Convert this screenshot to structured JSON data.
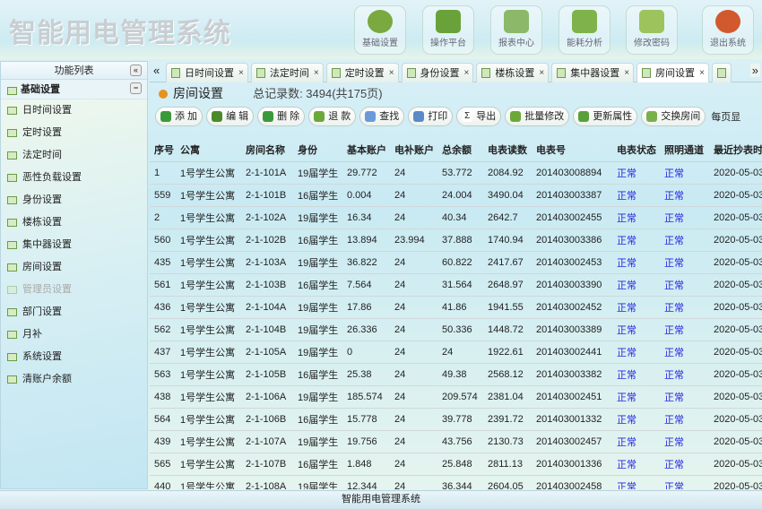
{
  "app_title": "智能用电管理系统",
  "top_buttons": [
    {
      "label": "基础设置",
      "icon": "gear-icon",
      "color": "#79a93f"
    },
    {
      "label": "操作平台",
      "icon": "monitor-icon",
      "color": "#6aa23a"
    },
    {
      "label": "报表中心",
      "icon": "printer-icon",
      "color": "#8cb86a"
    },
    {
      "label": "能耗分析",
      "icon": "bar-chart-icon",
      "color": "#7fb24b"
    },
    {
      "label": "修改密码",
      "icon": "lock-icon",
      "color": "#9dc35c"
    },
    {
      "label": "退出系统",
      "icon": "close-icon",
      "color": "#d2592e"
    }
  ],
  "sidebar": {
    "title": "功能列表",
    "collapse": "«",
    "group": "基础设置",
    "group_toggle": "−",
    "items": [
      {
        "label": "日时间设置"
      },
      {
        "label": "定时设置"
      },
      {
        "label": "法定时间"
      },
      {
        "label": "恶性负载设置"
      },
      {
        "label": "身份设置"
      },
      {
        "label": "楼栋设置"
      },
      {
        "label": "集中器设置"
      },
      {
        "label": "房间设置"
      },
      {
        "label": "管理员设置",
        "disabled": true
      },
      {
        "label": "部门设置"
      },
      {
        "label": "月补"
      },
      {
        "label": "系统设置"
      },
      {
        "label": "清账户余额"
      }
    ]
  },
  "tabs": {
    "prev": "«",
    "next": "»",
    "close": "×",
    "items": [
      {
        "label": "日时间设置"
      },
      {
        "label": "法定时间"
      },
      {
        "label": "定时设置"
      },
      {
        "label": "身份设置"
      },
      {
        "label": "楼栋设置"
      },
      {
        "label": "集中器设置"
      },
      {
        "label": "房间设置",
        "active": true
      }
    ]
  },
  "page": {
    "title": "房间设置",
    "record_count": "总记录数: 3494(共175页)"
  },
  "toolbar": {
    "buttons": [
      {
        "label": "添 加",
        "icon": "plus-icon",
        "color": "#3a9a3a"
      },
      {
        "label": "编 辑",
        "icon": "pencil-icon",
        "color": "#4a8a2a"
      },
      {
        "label": "删 除",
        "icon": "minus-icon",
        "color": "#3a9a3a"
      },
      {
        "label": "退 款",
        "icon": "x-icon",
        "color": "#6aa83a"
      },
      {
        "label": "查找",
        "icon": "magnifier-icon",
        "color": "#6a9ad8"
      },
      {
        "label": "打印",
        "icon": "printer-icon",
        "color": "#5a8ac8"
      },
      {
        "label": "导出",
        "icon": "sigma-icon",
        "color": "#ffffff"
      },
      {
        "label": "批量修改",
        "icon": "gear-icon",
        "color": "#6aa83a"
      },
      {
        "label": "更新属性",
        "icon": "arrow-down-icon",
        "color": "#5aa03a"
      },
      {
        "label": "交换房间",
        "icon": "house-icon",
        "color": "#7ab04a"
      }
    ],
    "page_size_label": "每页显"
  },
  "table": {
    "columns": [
      "序号",
      "公寓",
      "房间名称",
      "身份",
      "基本账户",
      "电补账户",
      "总余额",
      "电表读数",
      "电表号",
      "电表状态",
      "照明通道",
      "最近抄表时间"
    ],
    "rows": [
      [
        "1",
        "1号学生公寓",
        "2-1-101A",
        "19届学生",
        "29.772",
        "24",
        "53.772",
        "2084.92",
        "201403008894",
        "正常",
        "正常",
        "2020-05-03"
      ],
      [
        "559",
        "1号学生公寓",
        "2-1-101B",
        "16届学生",
        "0.004",
        "24",
        "24.004",
        "3490.04",
        "201403003387",
        "正常",
        "正常",
        "2020-05-03"
      ],
      [
        "2",
        "1号学生公寓",
        "2-1-102A",
        "19届学生",
        "16.34",
        "24",
        "40.34",
        "2642.7",
        "201403002455",
        "正常",
        "正常",
        "2020-05-03"
      ],
      [
        "560",
        "1号学生公寓",
        "2-1-102B",
        "16届学生",
        "13.894",
        "23.994",
        "37.888",
        "1740.94",
        "201403003386",
        "正常",
        "正常",
        "2020-05-03"
      ],
      [
        "435",
        "1号学生公寓",
        "2-1-103A",
        "19届学生",
        "36.822",
        "24",
        "60.822",
        "2417.67",
        "201403002453",
        "正常",
        "正常",
        "2020-05-03"
      ],
      [
        "561",
        "1号学生公寓",
        "2-1-103B",
        "16届学生",
        "7.564",
        "24",
        "31.564",
        "2648.97",
        "201403003390",
        "正常",
        "正常",
        "2020-05-03"
      ],
      [
        "436",
        "1号学生公寓",
        "2-1-104A",
        "19届学生",
        "17.86",
        "24",
        "41.86",
        "1941.55",
        "201403002452",
        "正常",
        "正常",
        "2020-05-03"
      ],
      [
        "562",
        "1号学生公寓",
        "2-1-104B",
        "19届学生",
        "26.336",
        "24",
        "50.336",
        "1448.72",
        "201403003389",
        "正常",
        "正常",
        "2020-05-03"
      ],
      [
        "437",
        "1号学生公寓",
        "2-1-105A",
        "19届学生",
        "0",
        "24",
        "24",
        "1922.61",
        "201403002441",
        "正常",
        "正常",
        "2020-05-03"
      ],
      [
        "563",
        "1号学生公寓",
        "2-1-105B",
        "16届学生",
        "25.38",
        "24",
        "49.38",
        "2568.12",
        "201403003382",
        "正常",
        "正常",
        "2020-05-03"
      ],
      [
        "438",
        "1号学生公寓",
        "2-1-106A",
        "19届学生",
        "185.574",
        "24",
        "209.574",
        "2381.04",
        "201403002451",
        "正常",
        "正常",
        "2020-05-03"
      ],
      [
        "564",
        "1号学生公寓",
        "2-1-106B",
        "16届学生",
        "15.778",
        "24",
        "39.778",
        "2391.72",
        "201403001332",
        "正常",
        "正常",
        "2020-05-03"
      ],
      [
        "439",
        "1号学生公寓",
        "2-1-107A",
        "19届学生",
        "19.756",
        "24",
        "43.756",
        "2130.73",
        "201403002457",
        "正常",
        "正常",
        "2020-05-03"
      ],
      [
        "565",
        "1号学生公寓",
        "2-1-107B",
        "16届学生",
        "1.848",
        "24",
        "25.848",
        "2811.13",
        "201403001336",
        "正常",
        "正常",
        "2020-05-03"
      ],
      [
        "440",
        "1号学生公寓",
        "2-1-108A",
        "19届学生",
        "12.344",
        "24",
        "36.344",
        "2604.05",
        "201403002458",
        "正常",
        "正常",
        "2020-05-03"
      ]
    ]
  },
  "footer": "智能用电管理系统"
}
